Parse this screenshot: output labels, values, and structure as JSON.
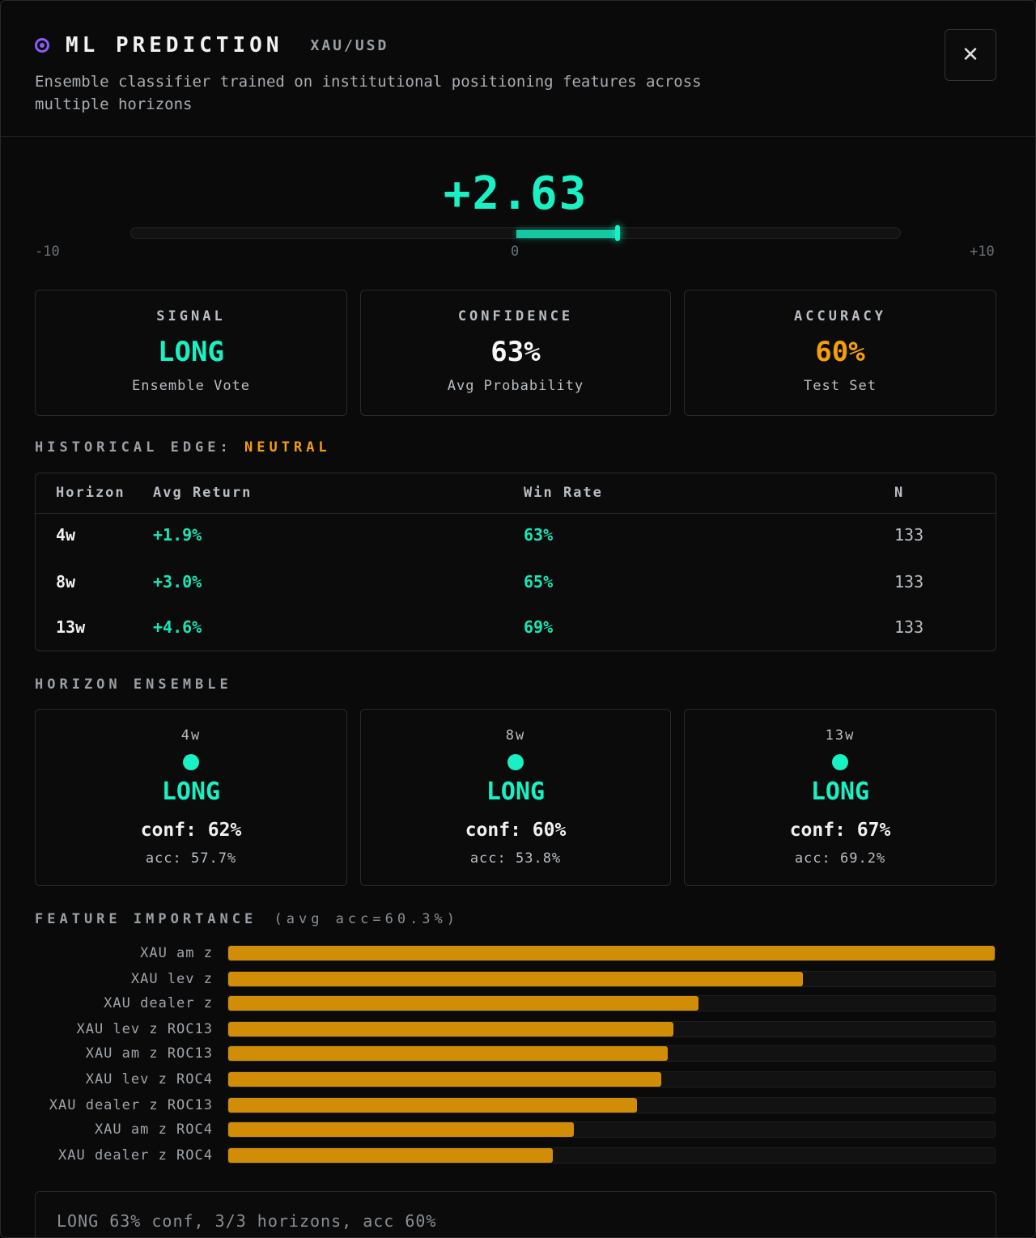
{
  "header": {
    "title": "ML PREDICTION",
    "pair": "XAU/USD",
    "description": "Ensemble classifier trained on institutional positioning features across multiple horizons",
    "close_label": "✕"
  },
  "gauge": {
    "score": "+2.63",
    "value": 2.63,
    "min": -10,
    "max": 10,
    "min_label": "-10",
    "mid_label": "0",
    "max_label": "+10"
  },
  "stats": [
    {
      "label": "SIGNAL",
      "value": "LONG",
      "sub": "Ensemble Vote",
      "color": "#19f0c3"
    },
    {
      "label": "CONFIDENCE",
      "value": "63%",
      "sub": "Avg Probability",
      "color": "#f5f5f5"
    },
    {
      "label": "ACCURACY",
      "value": "60%",
      "sub": "Test Set",
      "color": "#f59e0b"
    }
  ],
  "historical": {
    "title": "HISTORICAL EDGE:",
    "status": "NEUTRAL",
    "columns": [
      "Horizon",
      "Avg Return",
      "Win Rate",
      "N"
    ],
    "rows": [
      {
        "horizon": "4w",
        "avg_return": "+1.9%",
        "win_rate": "63%",
        "n": "133"
      },
      {
        "horizon": "8w",
        "avg_return": "+3.0%",
        "win_rate": "65%",
        "n": "133"
      },
      {
        "horizon": "13w",
        "avg_return": "+4.6%",
        "win_rate": "69%",
        "n": "133"
      }
    ]
  },
  "ensemble": {
    "title": "HORIZON ENSEMBLE",
    "items": [
      {
        "horizon": "4w",
        "signal": "LONG",
        "conf": "conf: 62%",
        "acc": "acc: 57.7%"
      },
      {
        "horizon": "8w",
        "signal": "LONG",
        "conf": "conf: 60%",
        "acc": "acc: 53.8%"
      },
      {
        "horizon": "13w",
        "signal": "LONG",
        "conf": "conf: 67%",
        "acc": "acc: 69.2%"
      }
    ]
  },
  "features": {
    "title": "FEATURE IMPORTANCE",
    "subtitle": "(avg acc=60.3%)",
    "color": "#d18d06",
    "items": [
      {
        "name": "XAU am z",
        "importance": 1.0
      },
      {
        "name": "XAU lev z",
        "importance": 0.75
      },
      {
        "name": "XAU dealer z",
        "importance": 0.613
      },
      {
        "name": "XAU lev z ROC13",
        "importance": 0.581
      },
      {
        "name": "XAU am z ROC13",
        "importance": 0.573
      },
      {
        "name": "XAU lev z ROC4",
        "importance": 0.565
      },
      {
        "name": "XAU dealer z ROC13",
        "importance": 0.533
      },
      {
        "name": "XAU am z ROC4",
        "importance": 0.451
      },
      {
        "name": "XAU dealer z ROC4",
        "importance": 0.423
      }
    ]
  },
  "summary": "LONG 63% conf, 3/3 horizons, acc 60%"
}
